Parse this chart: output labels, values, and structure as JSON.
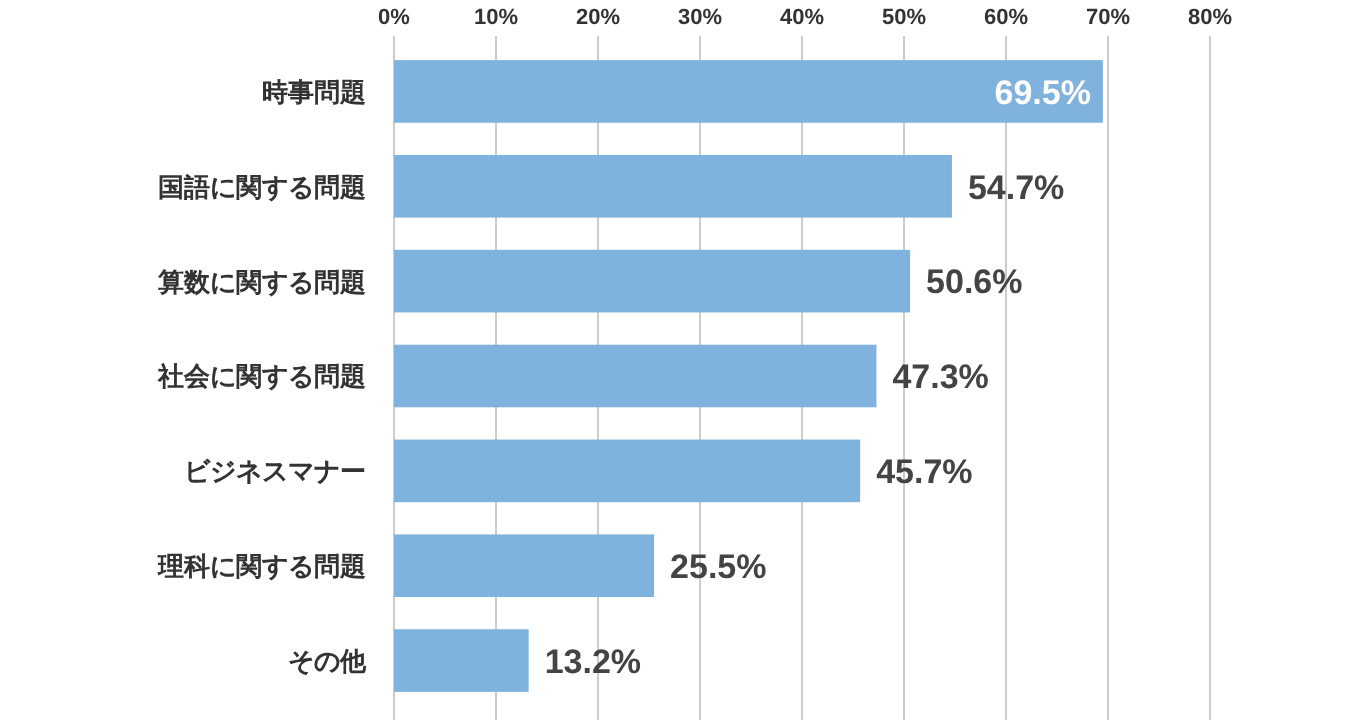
{
  "chart_data": {
    "type": "bar",
    "orientation": "horizontal",
    "categories": [
      "時事問題",
      "国語に関する問題",
      "算数に関する問題",
      "社会に関する問題",
      "ビジネスマナー",
      "理科に関する問題",
      "その他"
    ],
    "values": [
      69.5,
      54.7,
      50.6,
      47.3,
      45.7,
      25.5,
      13.2
    ],
    "value_labels": [
      "69.5%",
      "54.7%",
      "50.6%",
      "47.3%",
      "45.7%",
      "25.5%",
      "13.2%"
    ],
    "color": "#7fb2dc",
    "xlim": [
      0,
      80
    ],
    "xticks": [
      {
        "value": 0,
        "label": "0%"
      },
      {
        "value": 10,
        "label": "10%"
      },
      {
        "value": 20,
        "label": "20%"
      },
      {
        "value": 30,
        "label": "30%"
      },
      {
        "value": 40,
        "label": "40%"
      },
      {
        "value": 50,
        "label": "50%"
      },
      {
        "value": 60,
        "label": "60%"
      },
      {
        "value": 70,
        "label": "70%"
      },
      {
        "value": 80,
        "label": "80%"
      }
    ],
    "grid": "x"
  }
}
